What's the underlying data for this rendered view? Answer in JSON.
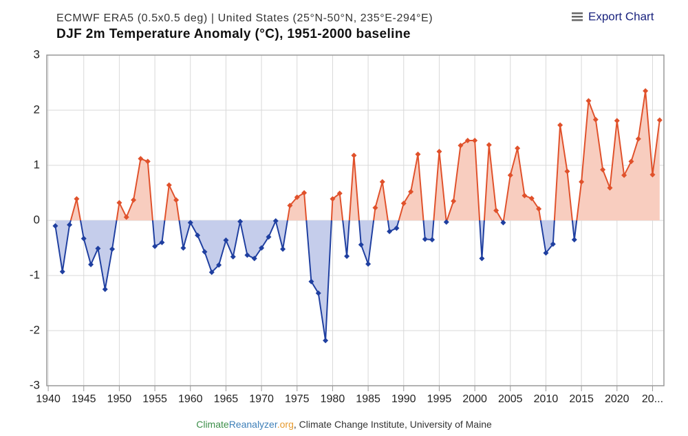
{
  "chart_data": {
    "type": "line",
    "title": "ECMWF ERA5 (0.5x0.5 deg) | United States (25°N-50°N, 235°E-294°E)",
    "subtitle": "DJF 2m Temperature Anomaly (°C), 1951-2000 baseline",
    "export_button": "Export Chart",
    "credits": [
      "Climate",
      "Reanalyzer",
      ".org",
      ", Climate Change Institute, University of Maine"
    ],
    "x": [
      1941,
      1942,
      1943,
      1944,
      1945,
      1946,
      1947,
      1948,
      1949,
      1950,
      1951,
      1952,
      1953,
      1954,
      1955,
      1956,
      1957,
      1958,
      1959,
      1960,
      1961,
      1962,
      1963,
      1964,
      1965,
      1966,
      1967,
      1968,
      1969,
      1970,
      1971,
      1972,
      1973,
      1974,
      1975,
      1976,
      1977,
      1978,
      1979,
      1980,
      1981,
      1982,
      1983,
      1984,
      1985,
      1986,
      1987,
      1988,
      1989,
      1990,
      1991,
      1992,
      1993,
      1994,
      1995,
      1996,
      1997,
      1998,
      1999,
      2000,
      2001,
      2002,
      2003,
      2004,
      2005,
      2006,
      2007,
      2008,
      2009,
      2010,
      2011,
      2012,
      2013,
      2014,
      2015,
      2016,
      2017,
      2018,
      2019,
      2020,
      2021,
      2022,
      2023,
      2024,
      2025,
      2026
    ],
    "series": [
      {
        "name": "DJF 2m Temperature Anomaly",
        "color": "#e0512b",
        "negative_color": "#1f3fa0",
        "fill": "#f8cdbf",
        "negative_fill": "#c5cdeb",
        "values": [
          -0.1,
          -0.93,
          -0.08,
          0.39,
          -0.33,
          -0.8,
          -0.51,
          -1.25,
          -0.52,
          0.32,
          0.06,
          0.37,
          1.12,
          1.07,
          -0.47,
          -0.4,
          0.64,
          0.37,
          -0.5,
          -0.04,
          -0.27,
          -0.57,
          -0.94,
          -0.81,
          -0.36,
          -0.66,
          -0.02,
          -0.63,
          -0.69,
          -0.5,
          -0.3,
          -0.01,
          -0.52,
          0.27,
          0.42,
          0.5,
          -1.11,
          -1.32,
          -2.18,
          0.39,
          0.49,
          -0.65,
          1.18,
          -0.44,
          -0.79,
          0.23,
          0.7,
          -0.2,
          -0.14,
          0.31,
          0.52,
          1.2,
          -0.34,
          -0.35,
          1.25,
          -0.03,
          0.35,
          1.36,
          1.45,
          1.45,
          -0.69,
          1.37,
          0.18,
          -0.04,
          0.82,
          1.31,
          0.45,
          0.4,
          0.21,
          -0.59,
          -0.43,
          1.73,
          0.89,
          -0.35,
          0.7,
          2.17,
          1.83,
          0.92,
          0.59,
          1.81,
          0.82,
          1.07,
          1.48,
          2.35,
          0.83,
          1.82
        ]
      }
    ],
    "xlim": [
      1939.8,
      2026.6
    ],
    "xticks": [
      1940,
      1945,
      1950,
      1955,
      1960,
      1965,
      1970,
      1975,
      1980,
      1985,
      1990,
      1995,
      2000,
      2005,
      2010,
      2015,
      2020,
      {
        "value": 2025,
        "label": "20..."
      }
    ],
    "ylim": [
      -3,
      3
    ],
    "yticks": [
      -3,
      -2,
      -1,
      0,
      1,
      2,
      3
    ],
    "grid": true
  }
}
